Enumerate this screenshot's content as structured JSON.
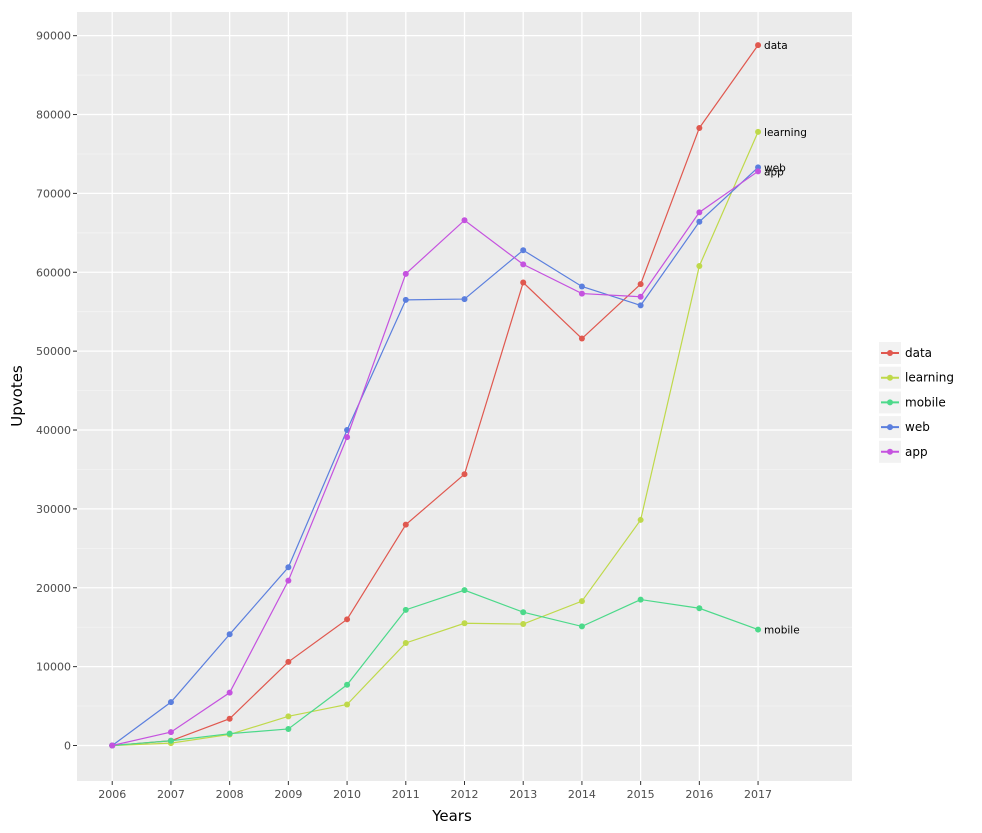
{
  "chart_data": {
    "type": "line",
    "xlabel": "Years",
    "ylabel": "Upvotes",
    "x": [
      2006,
      2007,
      2008,
      2009,
      2010,
      2011,
      2012,
      2013,
      2014,
      2015,
      2016,
      2017
    ],
    "xlim": [
      2005.4,
      2018.6
    ],
    "ylim": [
      -4500,
      93000
    ],
    "yticks": [
      0,
      10000,
      20000,
      30000,
      40000,
      50000,
      60000,
      70000,
      80000,
      90000
    ],
    "grid": true,
    "legend": "right",
    "series": [
      {
        "name": "data",
        "color": "#E0584F",
        "values": [
          0,
          600,
          3400,
          10600,
          16000,
          28000,
          34400,
          58700,
          51600,
          58500,
          78300,
          88800
        ]
      },
      {
        "name": "learning",
        "color": "#BFD94A",
        "values": [
          0,
          300,
          1400,
          3700,
          5200,
          13000,
          15500,
          15400,
          18300,
          28600,
          60800,
          77800
        ]
      },
      {
        "name": "mobile",
        "color": "#4CD98A",
        "values": [
          0,
          600,
          1500,
          2100,
          7700,
          17200,
          19700,
          16900,
          15100,
          18500,
          17400,
          14700
        ]
      },
      {
        "name": "web",
        "color": "#5B7FDE",
        "values": [
          0,
          5500,
          14100,
          22600,
          40000,
          56500,
          56600,
          62800,
          58200,
          55800,
          66400,
          73300
        ]
      },
      {
        "name": "app",
        "color": "#C552DF",
        "values": [
          0,
          1700,
          6700,
          20900,
          39100,
          59800,
          66600,
          61000,
          57300,
          56900,
          67600,
          72800
        ]
      }
    ]
  }
}
